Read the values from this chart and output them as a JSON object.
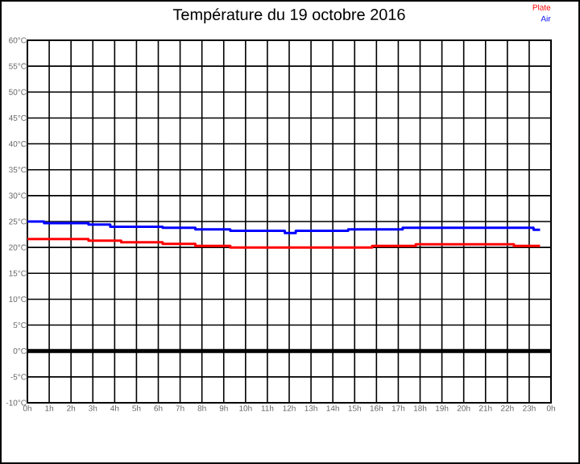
{
  "chart_data": {
    "type": "step",
    "title": "Température du 19 octobre 2016",
    "series": [
      {
        "name": "Plate",
        "color": "#ff0000",
        "x": [
          "2016-10-19T00:00",
          "2016-10-19T02:48",
          "2016-10-19T04:18",
          "2016-10-19T06:12",
          "2016-10-19T07:42",
          "2016-10-19T09:18",
          "2016-10-19T15:48",
          "2016-10-19T17:48",
          "2016-10-19T22:18",
          "2016-10-19T23:30"
        ],
        "values": [
          21.6,
          21.3,
          21.0,
          20.7,
          20.3,
          20.0,
          20.3,
          20.6,
          20.3,
          20.3
        ]
      },
      {
        "name": "Air",
        "color": "#0000ff",
        "x": [
          "2016-10-19T00:00",
          "2016-10-19T00:46",
          "2016-10-19T02:48",
          "2016-10-19T03:48",
          "2016-10-19T06:12",
          "2016-10-19T07:42",
          "2016-10-19T09:18",
          "2016-10-19T11:48",
          "2016-10-19T12:18",
          "2016-10-19T14:42",
          "2016-10-19T17:12",
          "2016-10-19T23:12",
          "2016-10-19T23:30"
        ],
        "values": [
          25.0,
          24.7,
          24.4,
          24.0,
          23.8,
          23.5,
          23.2,
          22.8,
          23.2,
          23.5,
          23.8,
          23.4,
          23.4
        ]
      }
    ],
    "xlim": [
      "2016-10-19T00:00",
      "2016-10-20T00:00"
    ],
    "xticks": [
      {
        "value": "2016-10-19T00:00",
        "label": "0h"
      },
      {
        "value": "2016-10-19T01:00",
        "label": "1h"
      },
      {
        "value": "2016-10-19T02:00",
        "label": "2h"
      },
      {
        "value": "2016-10-19T03:00",
        "label": "3h"
      },
      {
        "value": "2016-10-19T04:00",
        "label": "4h"
      },
      {
        "value": "2016-10-19T05:00",
        "label": "5h"
      },
      {
        "value": "2016-10-19T06:00",
        "label": "6h"
      },
      {
        "value": "2016-10-19T07:00",
        "label": "7h"
      },
      {
        "value": "2016-10-19T08:00",
        "label": "8h"
      },
      {
        "value": "2016-10-19T09:00",
        "label": "9h"
      },
      {
        "value": "2016-10-19T10:00",
        "label": "10h"
      },
      {
        "value": "2016-10-19T11:00",
        "label": "11h"
      },
      {
        "value": "2016-10-19T12:00",
        "label": "12h"
      },
      {
        "value": "2016-10-19T13:00",
        "label": "13h"
      },
      {
        "value": "2016-10-19T14:00",
        "label": "14h"
      },
      {
        "value": "2016-10-19T15:00",
        "label": "15h"
      },
      {
        "value": "2016-10-19T16:00",
        "label": "16h"
      },
      {
        "value": "2016-10-19T17:00",
        "label": "17h"
      },
      {
        "value": "2016-10-19T18:00",
        "label": "18h"
      },
      {
        "value": "2016-10-19T19:00",
        "label": "19h"
      },
      {
        "value": "2016-10-19T20:00",
        "label": "20h"
      },
      {
        "value": "2016-10-19T21:00",
        "label": "21h"
      },
      {
        "value": "2016-10-19T22:00",
        "label": "22h"
      },
      {
        "value": "2016-10-19T23:00",
        "label": "23h"
      },
      {
        "value": "2016-10-20T00:00",
        "label": "0h"
      }
    ],
    "ylim": [
      -10,
      60
    ],
    "yticks": [
      {
        "value": -10,
        "label": "-10°C"
      },
      {
        "value": -5,
        "label": "-5°C"
      },
      {
        "value": 0,
        "label": "0°C"
      },
      {
        "value": 5,
        "label": "5°C"
      },
      {
        "value": 10,
        "label": "10°C"
      },
      {
        "value": 15,
        "label": "15°C"
      },
      {
        "value": 20,
        "label": "20°C"
      },
      {
        "value": 25,
        "label": "25°C"
      },
      {
        "value": 30,
        "label": "30°C"
      },
      {
        "value": 35,
        "label": "35°C"
      },
      {
        "value": 40,
        "label": "40°C"
      },
      {
        "value": 45,
        "label": "45°C"
      },
      {
        "value": 50,
        "label": "50°C"
      },
      {
        "value": 55,
        "label": "55°C"
      },
      {
        "value": 60,
        "label": "60°C"
      }
    ],
    "grid": true,
    "legend": "top right",
    "ref_lines": [
      {
        "axis": "y",
        "value": 0,
        "color": "#000000"
      }
    ]
  }
}
